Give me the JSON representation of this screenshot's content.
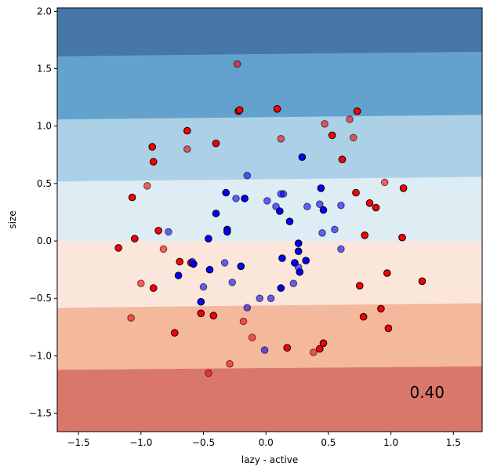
{
  "chart_data": {
    "type": "scatter",
    "title": "",
    "xlabel": "lazy - active",
    "ylabel": "size",
    "xlim": [
      -1.67,
      1.73
    ],
    "ylim": [
      -1.66,
      2.03
    ],
    "x_ticks": [
      -1.5,
      -1.0,
      -0.5,
      0.0,
      0.5,
      1.0,
      1.5
    ],
    "x_tick_labels": [
      "−1.5",
      "−1.0",
      "−0.5",
      "0.0",
      "0.5",
      "1.0",
      "1.5"
    ],
    "y_ticks": [
      -1.5,
      -1.0,
      -0.5,
      0.0,
      0.5,
      1.0,
      1.5,
      2.0
    ],
    "y_tick_labels": [
      "−1.5",
      "−1.0",
      "−0.5",
      "0.0",
      "0.5",
      "1.0",
      "1.5",
      "2.0"
    ],
    "grid": false,
    "annotation": "0.40",
    "decision_regions": [
      {
        "color": "#d9776b",
        "left_y": [
          -1.66,
          -1.12
        ],
        "right_y": [
          -1.66,
          -1.09
        ]
      },
      {
        "color": "#f4b89c",
        "left_y": [
          -1.12,
          -0.58
        ],
        "right_y": [
          -1.09,
          -0.54
        ]
      },
      {
        "color": "#fbe6dc",
        "left_y": [
          -0.58,
          0.0
        ],
        "right_y": [
          -0.54,
          0.0
        ]
      },
      {
        "color": "#deedf4",
        "left_y": [
          0.0,
          0.52
        ],
        "right_y": [
          0.0,
          0.56
        ]
      },
      {
        "color": "#acd1e6",
        "left_y": [
          0.52,
          1.06
        ],
        "right_y": [
          0.56,
          1.1
        ]
      },
      {
        "color": "#63a2cd",
        "left_y": [
          1.06,
          1.61
        ],
        "right_y": [
          1.1,
          1.65
        ]
      },
      {
        "color": "#4677a8",
        "left_y": [
          1.61,
          2.03
        ],
        "right_y": [
          1.65,
          2.03
        ]
      }
    ],
    "colors": {
      "class_red": "#ff0000",
      "class_blue": "#0000ff",
      "edge": "#000000"
    },
    "series": [
      {
        "class": "red",
        "split": "train",
        "points": [
          [
            -0.22,
            1.13
          ],
          [
            -0.21,
            1.14
          ],
          [
            0.09,
            1.15
          ],
          [
            0.73,
            1.13
          ],
          [
            -0.63,
            0.96
          ],
          [
            0.53,
            0.92
          ],
          [
            -0.91,
            0.82
          ],
          [
            -0.4,
            0.85
          ],
          [
            0.61,
            0.71
          ],
          [
            -0.9,
            0.69
          ],
          [
            -1.07,
            0.38
          ],
          [
            0.72,
            0.42
          ],
          [
            1.1,
            0.46
          ],
          [
            0.83,
            0.33
          ],
          [
            0.88,
            0.29
          ],
          [
            -0.86,
            0.09
          ],
          [
            -1.05,
            0.02
          ],
          [
            0.79,
            0.05
          ],
          [
            1.09,
            0.03
          ],
          [
            -1.18,
            -0.06
          ],
          [
            -0.69,
            -0.18
          ],
          [
            -0.6,
            -0.19
          ],
          [
            0.97,
            -0.28
          ],
          [
            0.75,
            -0.39
          ],
          [
            1.25,
            -0.35
          ],
          [
            -0.9,
            -0.41
          ],
          [
            -0.52,
            -0.63
          ],
          [
            -0.42,
            -0.65
          ],
          [
            0.78,
            -0.66
          ],
          [
            0.92,
            -0.59
          ],
          [
            -0.73,
            -0.8
          ],
          [
            0.98,
            -0.76
          ],
          [
            0.17,
            -0.93
          ],
          [
            0.43,
            -0.94
          ],
          [
            0.46,
            -0.89
          ]
        ]
      },
      {
        "class": "red",
        "split": "test",
        "points": [
          [
            -0.23,
            1.54
          ],
          [
            0.47,
            1.02
          ],
          [
            0.67,
            1.06
          ],
          [
            -0.63,
            0.8
          ],
          [
            0.12,
            0.89
          ],
          [
            0.7,
            0.9
          ],
          [
            -0.95,
            0.48
          ],
          [
            0.95,
            0.51
          ],
          [
            -0.82,
            -0.07
          ],
          [
            -1.0,
            -0.37
          ],
          [
            -1.08,
            -0.67
          ],
          [
            -0.18,
            -0.7
          ],
          [
            -0.11,
            -0.84
          ],
          [
            0.38,
            -0.97
          ],
          [
            -0.29,
            -1.07
          ],
          [
            -0.46,
            -1.15
          ]
        ]
      },
      {
        "class": "blue",
        "split": "train",
        "points": [
          [
            0.29,
            0.73
          ],
          [
            -0.32,
            0.42
          ],
          [
            0.44,
            0.46
          ],
          [
            -0.4,
            0.24
          ],
          [
            0.46,
            0.27
          ],
          [
            -0.17,
            0.37
          ],
          [
            0.11,
            0.26
          ],
          [
            -0.31,
            0.1
          ],
          [
            -0.31,
            0.08
          ],
          [
            0.19,
            0.17
          ],
          [
            -0.46,
            0.02
          ],
          [
            0.26,
            -0.02
          ],
          [
            0.26,
            -0.09
          ],
          [
            -0.58,
            -0.2
          ],
          [
            0.13,
            -0.15
          ],
          [
            -0.7,
            -0.3
          ],
          [
            0.23,
            -0.19
          ],
          [
            0.32,
            -0.17
          ],
          [
            -0.45,
            -0.25
          ],
          [
            -0.2,
            -0.22
          ],
          [
            0.27,
            -0.27
          ],
          [
            0.12,
            -0.41
          ],
          [
            -0.52,
            -0.53
          ]
        ]
      },
      {
        "class": "blue",
        "split": "test",
        "points": [
          [
            -0.15,
            0.57
          ],
          [
            0.14,
            0.41
          ],
          [
            0.12,
            0.41
          ],
          [
            0.01,
            0.35
          ],
          [
            -0.24,
            0.37
          ],
          [
            0.43,
            0.32
          ],
          [
            0.08,
            0.3
          ],
          [
            0.33,
            0.3
          ],
          [
            0.6,
            0.31
          ],
          [
            0.55,
            0.1
          ],
          [
            -0.78,
            0.08
          ],
          [
            0.45,
            0.07
          ],
          [
            0.6,
            -0.07
          ],
          [
            -0.59,
            -0.18
          ],
          [
            -0.33,
            -0.19
          ],
          [
            -0.27,
            -0.36
          ],
          [
            0.22,
            -0.37
          ],
          [
            0.26,
            -0.23
          ],
          [
            -0.5,
            -0.4
          ],
          [
            -0.05,
            -0.5
          ],
          [
            0.04,
            -0.5
          ],
          [
            -0.15,
            -0.58
          ],
          [
            -0.01,
            -0.95
          ]
        ]
      }
    ]
  }
}
